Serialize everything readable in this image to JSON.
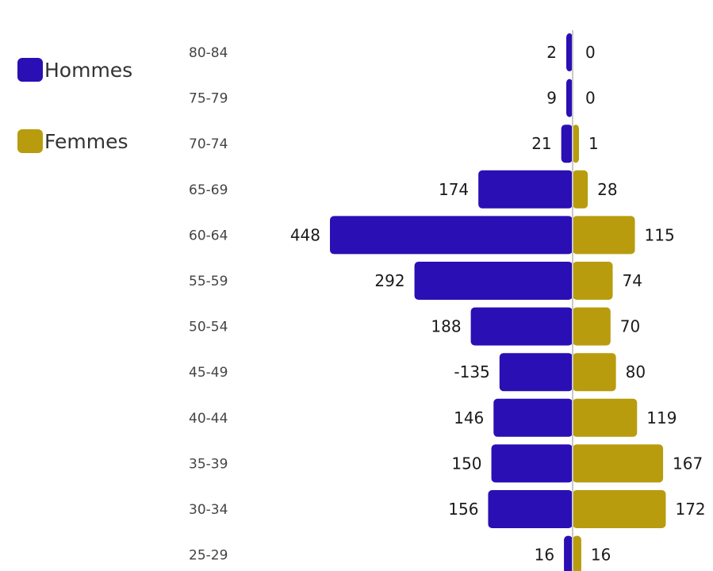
{
  "chart_data": {
    "type": "bar",
    "orientation": "horizontal",
    "subtype": "population-pyramid",
    "categories": [
      "80-84",
      "75-79",
      "70-74",
      "65-69",
      "60-64",
      "55-59",
      "50-54",
      "45-49",
      "40-44",
      "35-39",
      "30-34",
      "25-29"
    ],
    "series": [
      {
        "name": "Hommes",
        "color": "#2a0fb4",
        "values": [
          2,
          9,
          21,
          174,
          448,
          292,
          188,
          135,
          146,
          150,
          156,
          16
        ],
        "labels": [
          "2",
          "9",
          "21",
          "174",
          "448",
          "292",
          "188",
          "-135",
          "146",
          "150",
          "156",
          "16"
        ]
      },
      {
        "name": "Femmes",
        "color": "#b89c0e",
        "values": [
          0,
          0,
          1,
          28,
          115,
          74,
          70,
          80,
          119,
          167,
          172,
          16
        ],
        "labels": [
          "0",
          "0",
          "1",
          "28",
          "115",
          "74",
          "70",
          "80",
          "119",
          "167",
          "172",
          "16"
        ]
      }
    ],
    "legend_position": "top-left",
    "grid": false,
    "title": "",
    "xlabel": "",
    "ylabel": ""
  }
}
